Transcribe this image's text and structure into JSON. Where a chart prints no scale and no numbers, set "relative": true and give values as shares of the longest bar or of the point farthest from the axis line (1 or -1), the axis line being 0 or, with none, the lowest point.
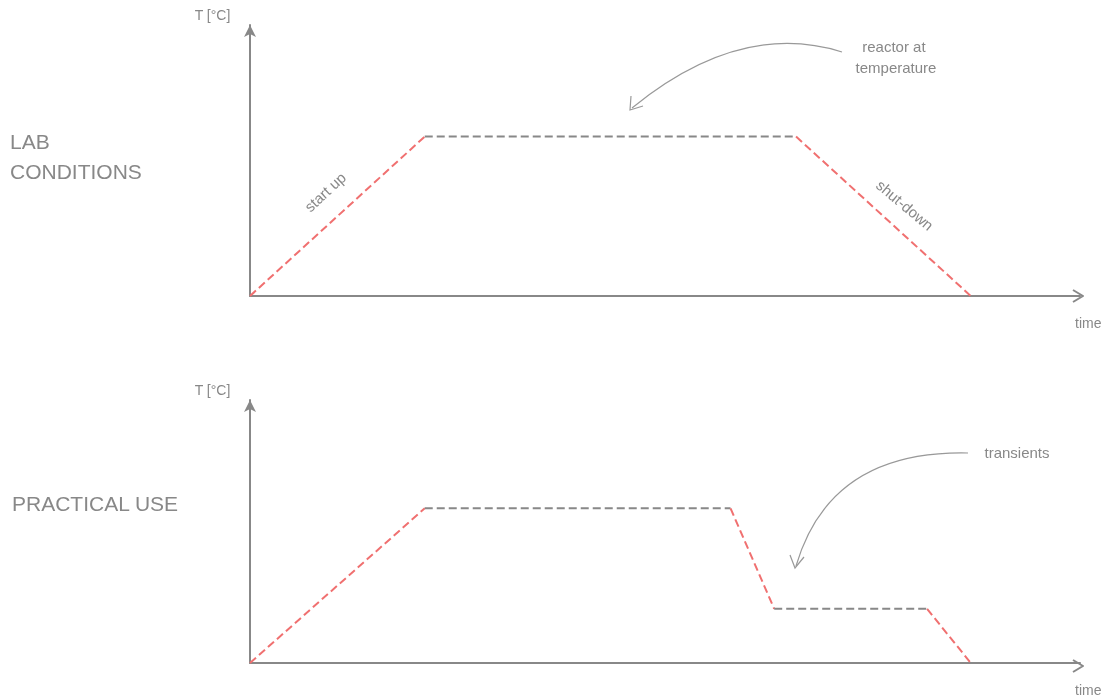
{
  "chart_data": [
    {
      "type": "line",
      "title": "LAB CONDITIONS",
      "ylabel": "T [°C]",
      "xlabel": "time",
      "relative": true,
      "marker": "none",
      "line_style": "dashed",
      "categories": [
        null,
        null,
        null,
        null,
        null,
        null,
        null,
        null,
        null,
        null,
        null,
        null,
        null,
        null,
        null,
        null,
        null,
        null,
        null,
        null,
        null,
        null,
        null,
        null,
        null,
        null,
        null,
        null,
        null,
        null,
        null,
        null,
        null,
        null,
        null,
        null,
        null,
        null,
        null
      ],
      "series": [
        {
          "color": "#f07070",
          "values": [
            0,
            null,
            null,
            null,
            null,
            null,
            null,
            null,
            1,
            null,
            null,
            null,
            null,
            null,
            null,
            null,
            null,
            null,
            null,
            null,
            null,
            null,
            null,
            null,
            null,
            null,
            null,
            null,
            null,
            null,
            null,
            null,
            null,
            null,
            null,
            null,
            null,
            null,
            null
          ]
        },
        {
          "color": "#888888",
          "values": [
            null,
            null,
            null,
            null,
            null,
            null,
            null,
            null,
            1,
            null,
            null,
            null,
            null,
            null,
            null,
            null,
            null,
            null,
            null,
            null,
            null,
            null,
            null,
            null,
            null,
            1,
            null,
            null,
            null,
            null,
            null,
            null,
            null,
            null,
            null,
            null,
            null,
            null,
            null
          ]
        },
        {
          "color": "#f07070",
          "values": [
            null,
            null,
            null,
            null,
            null,
            null,
            null,
            null,
            null,
            null,
            null,
            null,
            null,
            null,
            null,
            null,
            null,
            null,
            null,
            null,
            null,
            null,
            null,
            null,
            null,
            1,
            null,
            null,
            null,
            null,
            null,
            null,
            null,
            0,
            null,
            null,
            null,
            null,
            null
          ]
        }
      ],
      "annotations": [
        "start up",
        "shut-down",
        "reactor at temperature"
      ]
    },
    {
      "type": "line",
      "title": "PRACTICAL USE",
      "ylabel": "T [°C]",
      "xlabel": "time",
      "relative": true,
      "marker": "none",
      "line_style": "dashed",
      "categories": [
        null,
        null,
        null,
        null,
        null,
        null,
        null,
        null,
        null,
        null,
        null,
        null,
        null,
        null,
        null,
        null,
        null,
        null,
        null,
        null,
        null,
        null,
        null,
        null,
        null,
        null,
        null,
        null,
        null,
        null,
        null,
        null,
        null,
        null,
        null,
        null,
        null,
        null,
        null
      ],
      "series": [
        {
          "color": "#f07070",
          "values": [
            0,
            null,
            null,
            null,
            null,
            null,
            null,
            null,
            1,
            null,
            null,
            null,
            null,
            null,
            null,
            null,
            null,
            null,
            null,
            null,
            null,
            null,
            null,
            null,
            null,
            null,
            null,
            null,
            null,
            null,
            null,
            null,
            null,
            null,
            null,
            null,
            null,
            null,
            null
          ]
        },
        {
          "color": "#888888",
          "values": [
            null,
            null,
            null,
            null,
            null,
            null,
            null,
            null,
            1,
            null,
            null,
            null,
            null,
            null,
            null,
            null,
            null,
            null,
            null,
            null,
            null,
            null,
            1,
            null,
            null,
            null,
            null,
            null,
            null,
            null,
            null,
            null,
            null,
            null,
            null,
            null,
            null,
            null,
            null
          ]
        },
        {
          "color": "#f07070",
          "values": [
            null,
            null,
            null,
            null,
            null,
            null,
            null,
            null,
            null,
            null,
            null,
            null,
            null,
            null,
            null,
            null,
            null,
            null,
            null,
            null,
            null,
            null,
            1,
            null,
            0.35,
            null,
            null,
            null,
            null,
            null,
            null,
            null,
            null,
            null,
            null,
            null,
            null,
            null,
            null
          ]
        },
        {
          "color": "#888888",
          "values": [
            null,
            null,
            null,
            null,
            null,
            null,
            null,
            null,
            null,
            null,
            null,
            null,
            null,
            null,
            null,
            null,
            null,
            null,
            null,
            null,
            null,
            null,
            null,
            null,
            0.35,
            null,
            null,
            null,
            null,
            null,
            null,
            0.35,
            null,
            null,
            null,
            null,
            null,
            null,
            null
          ]
        },
        {
          "color": "#f07070",
          "values": [
            null,
            null,
            null,
            null,
            null,
            null,
            null,
            null,
            null,
            null,
            null,
            null,
            null,
            null,
            null,
            null,
            null,
            null,
            null,
            null,
            null,
            null,
            null,
            null,
            null,
            null,
            null,
            null,
            null,
            null,
            null,
            0.35,
            null,
            0,
            null,
            null,
            null,
            null,
            null
          ]
        }
      ],
      "annotations": [
        "transients"
      ]
    }
  ]
}
